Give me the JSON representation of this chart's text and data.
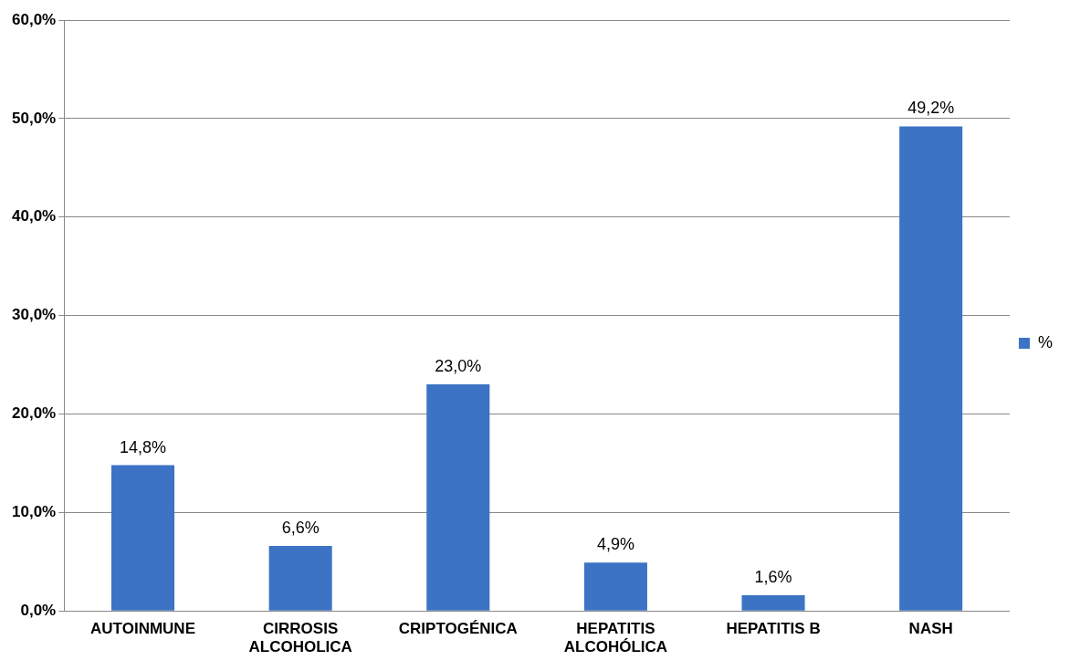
{
  "chart_data": {
    "type": "bar",
    "categories": [
      "AUTOINMUNE",
      "CIRROSIS ALCOHOLICA",
      "CRIPTOGÉNICA",
      "HEPATITIS ALCOHÓLICA",
      "HEPATITIS B",
      "NASH"
    ],
    "series": [
      {
        "name": "%",
        "color": "#3c73c4",
        "values": [
          14.8,
          6.6,
          23.0,
          4.9,
          1.6,
          49.2
        ],
        "value_labels": [
          "14,8%",
          "6,6%",
          "23,0%",
          "4,9%",
          "1,6%",
          "49,2%"
        ]
      }
    ],
    "ylim": [
      0,
      60
    ],
    "yticks": [
      {
        "value": 0,
        "label": "0,0%"
      },
      {
        "value": 10,
        "label": "10,0%"
      },
      {
        "value": 20,
        "label": "20,0%"
      },
      {
        "value": 30,
        "label": "30,0%"
      },
      {
        "value": 40,
        "label": "40,0%"
      },
      {
        "value": 50,
        "label": "50,0%"
      },
      {
        "value": 60,
        "label": "60,0%"
      }
    ],
    "grid": "y",
    "legend": "right"
  }
}
